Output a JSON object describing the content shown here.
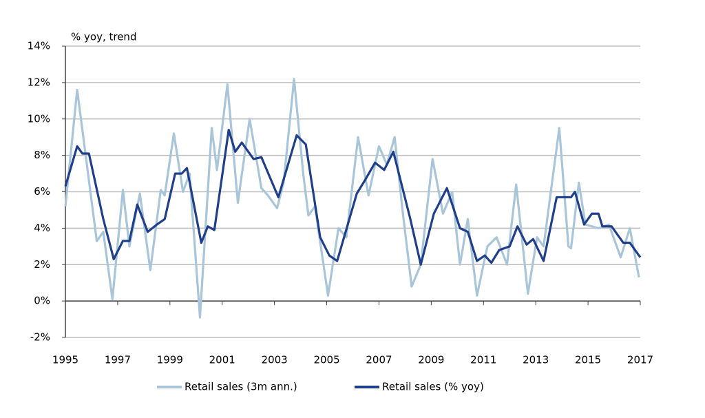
{
  "chart_data": {
    "type": "line",
    "ylabel": "% yoy, trend",
    "xlim": [
      1995,
      2017
    ],
    "xticks": [
      1995,
      1997,
      1999,
      2001,
      2003,
      2005,
      2007,
      2009,
      2011,
      2013,
      2015,
      2017
    ],
    "ylim": [
      -2,
      14
    ],
    "yticks": [
      {
        "value": -2,
        "label": "-2%"
      },
      {
        "value": 0,
        "label": "0%"
      },
      {
        "value": 2,
        "label": "2%"
      },
      {
        "value": 4,
        "label": "4%"
      },
      {
        "value": 6,
        "label": "6%"
      },
      {
        "value": 8,
        "label": "8%"
      },
      {
        "value": 10,
        "label": "10%"
      },
      {
        "value": 12,
        "label": "12%"
      },
      {
        "value": 14,
        "label": "14%"
      }
    ],
    "grid": true,
    "legend": "bottom",
    "series": [
      {
        "name": "Retail sales (3m ann.)",
        "color": "#a9c5d9",
        "x": [
          1995.0,
          1995.45,
          1996.2,
          1996.45,
          1996.8,
          1997.2,
          1997.45,
          1997.85,
          1998.25,
          1998.65,
          1998.8,
          1999.15,
          1999.5,
          1999.75,
          2000.15,
          2000.6,
          2000.8,
          2001.2,
          2001.6,
          2002.05,
          2002.5,
          2002.75,
          2003.1,
          2003.35,
          2003.75,
          2004.1,
          2004.3,
          2004.55,
          2005.05,
          2005.45,
          2005.75,
          2006.2,
          2006.6,
          2007.0,
          2007.3,
          2007.6,
          2007.9,
          2008.25,
          2008.6,
          2009.05,
          2009.45,
          2009.8,
          2010.1,
          2010.4,
          2010.75,
          2011.15,
          2011.5,
          2011.9,
          2012.25,
          2012.7,
          2013.05,
          2013.3,
          2013.9,
          2014.25,
          2014.35,
          2014.65,
          2014.9,
          2015.4,
          2015.8,
          2016.25,
          2016.6,
          2016.95
        ],
        "values": [
          5.2,
          11.6,
          3.3,
          3.8,
          0.1,
          6.1,
          3.0,
          5.9,
          1.7,
          6.1,
          5.8,
          9.2,
          6.0,
          7.0,
          -0.9,
          9.5,
          7.2,
          11.9,
          5.4,
          10.0,
          6.2,
          5.8,
          5.1,
          6.5,
          12.2,
          7.0,
          4.7,
          5.2,
          0.3,
          4.0,
          3.5,
          9.0,
          5.8,
          8.5,
          7.5,
          9.0,
          5.0,
          0.8,
          2.0,
          7.8,
          4.8,
          6.0,
          2.0,
          4.5,
          0.3,
          3.0,
          3.5,
          2.0,
          6.4,
          0.4,
          3.5,
          3.0,
          9.5,
          3.0,
          2.9,
          6.5,
          4.2,
          4.0,
          4.2,
          2.4,
          4.0,
          1.3
        ]
      },
      {
        "name": "Retail sales (% yoy)",
        "color": "#1f3f8a",
        "x": [
          1995.0,
          1995.45,
          1995.65,
          1995.9,
          1996.45,
          1996.85,
          1997.2,
          1997.45,
          1997.75,
          1998.15,
          1998.5,
          1998.8,
          1999.2,
          1999.45,
          1999.65,
          2000.2,
          2000.45,
          2000.7,
          2001.25,
          2001.5,
          2001.75,
          2002.2,
          2002.5,
          2003.15,
          2003.85,
          2004.2,
          2004.75,
          2005.1,
          2005.4,
          2006.15,
          2006.45,
          2006.85,
          2007.2,
          2007.55,
          2008.2,
          2008.6,
          2009.1,
          2009.6,
          2010.1,
          2010.4,
          2010.75,
          2011.05,
          2011.3,
          2011.6,
          2012.0,
          2012.3,
          2012.65,
          2012.9,
          2013.3,
          2013.8,
          2014.35,
          2014.5,
          2014.85,
          2015.15,
          2015.4,
          2015.55,
          2015.9,
          2016.35,
          2016.6,
          2017.0
        ],
        "values": [
          6.3,
          8.5,
          8.1,
          8.1,
          4.5,
          2.3,
          3.3,
          3.3,
          5.3,
          3.8,
          4.2,
          4.5,
          7.0,
          7.0,
          7.3,
          3.2,
          4.1,
          3.9,
          9.4,
          8.2,
          8.7,
          7.8,
          7.9,
          5.7,
          9.1,
          8.6,
          3.5,
          2.5,
          2.2,
          5.9,
          6.6,
          7.6,
          7.2,
          8.2,
          4.5,
          2.0,
          4.8,
          6.2,
          4.0,
          3.8,
          2.2,
          2.5,
          2.1,
          2.8,
          3.0,
          4.1,
          3.1,
          3.4,
          2.2,
          5.7,
          5.7,
          6.0,
          4.2,
          4.8,
          4.8,
          4.1,
          4.1,
          3.2,
          3.2,
          2.4
        ]
      }
    ]
  }
}
